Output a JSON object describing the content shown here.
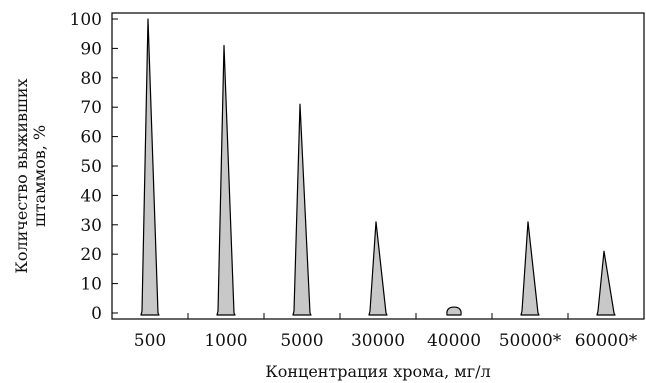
{
  "chart_data": {
    "type": "bar",
    "title": "",
    "xlabel": "Концентрация хрома, мг/л",
    "ylabel_lines": [
      "Количество выживших",
      "штаммов, %"
    ],
    "categories": [
      "500",
      "1000",
      "5000",
      "30000",
      "40000",
      "50000*",
      "60000*"
    ],
    "values": [
      100,
      91,
      71,
      31,
      1,
      31,
      21
    ],
    "ylim": [
      0,
      100
    ],
    "yticks": [
      0,
      10,
      20,
      30,
      40,
      50,
      60,
      70,
      80,
      90,
      100
    ],
    "grid": false,
    "legend": "none",
    "bar_fill": "#c8c8c8",
    "bar_stroke": "#000000"
  }
}
